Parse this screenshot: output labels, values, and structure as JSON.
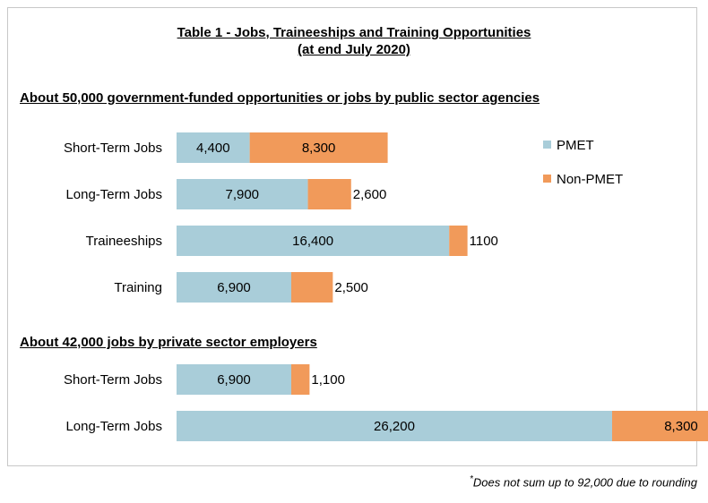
{
  "chart_data": {
    "type": "bar",
    "orientation": "horizontal",
    "stacked": true,
    "title": "Table 1 - Jobs, Traineeships and Training Opportunities",
    "subtitle": "(at end July 2020)",
    "legend": {
      "placement": "right",
      "entries": [
        "PMET",
        "Non-PMET"
      ]
    },
    "colors": {
      "PMET": "#a9cdd9",
      "Non-PMET": "#f19a5a"
    },
    "grid": false,
    "xlim": [
      0,
      35000
    ],
    "groups": [
      {
        "title": "About 50,000 government-funded opportunities or jobs by public sector agencies",
        "categories": [
          "Short-Term Jobs",
          "Long-Term Jobs",
          "Traineeships",
          "Training"
        ],
        "series": [
          {
            "name": "PMET",
            "values": [
              4400,
              7900,
              16400,
              6900
            ],
            "labels": [
              "4,400",
              "7,900",
              "16,400",
              "6,900"
            ]
          },
          {
            "name": "Non-PMET",
            "values": [
              8300,
              2600,
              1100,
              2500
            ],
            "labels": [
              "8,300",
              "2,600",
              "1100",
              "2,500"
            ]
          }
        ]
      },
      {
        "title": "About 42,000 jobs by private sector employers",
        "categories": [
          "Short-Term Jobs",
          "Long-Term Jobs"
        ],
        "series": [
          {
            "name": "PMET",
            "values": [
              6900,
              26200
            ],
            "labels": [
              "6,900",
              "26,200"
            ]
          },
          {
            "name": "Non-PMET",
            "values": [
              1100,
              8300
            ],
            "labels": [
              "1,100",
              "8,300"
            ]
          }
        ]
      }
    ]
  },
  "footnote": {
    "mark": "*",
    "text": "Does not sum up to 92,000 due to rounding"
  }
}
